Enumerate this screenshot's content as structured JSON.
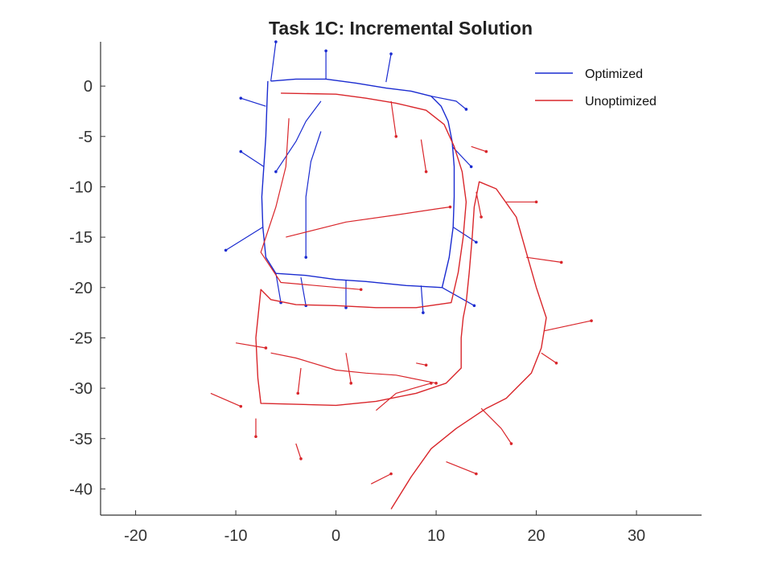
{
  "chart_data": {
    "type": "line",
    "title": "Task 1C: Incremental Solution",
    "xlabel": "",
    "ylabel": "",
    "xlim": [
      -23.5,
      36.5
    ],
    "ylim": [
      -42.6,
      4.4
    ],
    "xticks": [
      -20,
      -10,
      0,
      10,
      20,
      30
    ],
    "yticks": [
      0,
      -5,
      -10,
      -15,
      -20,
      -25,
      -30,
      -35,
      -40
    ],
    "grid": false,
    "legend_position": "top-right",
    "series": [
      {
        "name": "Optimized",
        "color": "#1a2bd0",
        "points": [
          [
            -6.5,
            0.5
          ],
          [
            -4,
            0.7
          ],
          [
            -1,
            0.7
          ],
          [
            2,
            0.3
          ],
          [
            5,
            -0.2
          ],
          [
            7.5,
            -0.5
          ],
          [
            9.5,
            -1
          ],
          [
            10.5,
            -2
          ],
          [
            11.2,
            -3.5
          ],
          [
            11.6,
            -5.5
          ],
          [
            11.8,
            -8
          ],
          [
            11.8,
            -11
          ],
          [
            11.7,
            -14
          ],
          [
            11.3,
            -17
          ],
          [
            10.6,
            -20
          ],
          [
            7,
            -19.8
          ],
          [
            3,
            -19.4
          ],
          [
            0,
            -19.2
          ],
          [
            -3,
            -18.8
          ],
          [
            -6,
            -18.6
          ],
          [
            -7,
            -17
          ],
          [
            -7.3,
            -14
          ],
          [
            -7.4,
            -11
          ],
          [
            -7.2,
            -8
          ],
          [
            -7,
            -5
          ],
          [
            -6.9,
            -2
          ],
          [
            -6.8,
            0.5
          ]
        ],
        "spurs": [
          [
            [
              -6.5,
              0.5
            ],
            [
              -6,
              4.4
            ]
          ],
          [
            [
              -1,
              0.7
            ],
            [
              -1,
              3.5
            ]
          ],
          [
            [
              5,
              0.4
            ],
            [
              5.5,
              3.2
            ]
          ],
          [
            [
              9.5,
              -1
            ],
            [
              12,
              -1.5
            ],
            [
              13,
              -2.3
            ]
          ],
          [
            [
              11.6,
              -6
            ],
            [
              13.5,
              -8
            ]
          ],
          [
            [
              11.7,
              -14
            ],
            [
              14,
              -15.5
            ]
          ],
          [
            [
              10.6,
              -20
            ],
            [
              13.8,
              -21.8
            ]
          ],
          [
            [
              -6,
              -18.6
            ],
            [
              -5.5,
              -21.5
            ]
          ],
          [
            [
              -3.5,
              -19
            ],
            [
              -3,
              -21.8
            ]
          ],
          [
            [
              1,
              -19.3
            ],
            [
              1,
              -22
            ]
          ],
          [
            [
              8.5,
              -19.8
            ],
            [
              8.7,
              -22.5
            ]
          ],
          [
            [
              -7.3,
              -14
            ],
            [
              -11,
              -16.3
            ]
          ],
          [
            [
              -7.2,
              -8
            ],
            [
              -9.5,
              -6.5
            ]
          ],
          [
            [
              -7,
              -2
            ],
            [
              -9.5,
              -1.2
            ]
          ],
          [
            [
              -1.5,
              -1.5
            ],
            [
              -3,
              -3.5
            ],
            [
              -4,
              -5.5
            ],
            [
              -6,
              -8.5
            ]
          ],
          [
            [
              -1.5,
              -4.5
            ],
            [
              -2.5,
              -7.5
            ],
            [
              -3,
              -11
            ],
            [
              -3,
              -14.5
            ],
            [
              -3,
              -17
            ]
          ]
        ]
      },
      {
        "name": "Unoptimized",
        "color": "#d9262b",
        "points": [
          [
            -5.5,
            -0.7
          ],
          [
            0,
            -0.8
          ],
          [
            3,
            -1.2
          ],
          [
            6,
            -1.7
          ],
          [
            9,
            -2.4
          ],
          [
            10.8,
            -3.8
          ],
          [
            11.8,
            -6
          ],
          [
            12.6,
            -8.5
          ],
          [
            13,
            -11.5
          ],
          [
            12.7,
            -15
          ],
          [
            12.2,
            -18.5
          ],
          [
            11.5,
            -21.5
          ],
          [
            8,
            -22
          ],
          [
            4,
            -22
          ],
          [
            0,
            -21.8
          ],
          [
            -4,
            -21.7
          ],
          [
            -6.5,
            -21.2
          ],
          [
            -7.5,
            -20.2
          ],
          [
            -8,
            -25
          ],
          [
            -7.8,
            -29
          ],
          [
            -7.5,
            -31.5
          ],
          [
            -4,
            -31.6
          ],
          [
            0,
            -31.7
          ],
          [
            4,
            -31.3
          ],
          [
            8,
            -30.5
          ],
          [
            11,
            -29.5
          ],
          [
            12.5,
            -28
          ],
          [
            12.5,
            -25
          ],
          [
            12.7,
            -23
          ],
          [
            13,
            -21.5
          ],
          [
            13.3,
            -18.5
          ],
          [
            13.6,
            -15
          ],
          [
            13.8,
            -12
          ],
          [
            14.3,
            -9.5
          ],
          [
            16,
            -10.2
          ],
          [
            18,
            -13
          ],
          [
            19,
            -16.5
          ],
          [
            20,
            -20
          ],
          [
            21,
            -23
          ],
          [
            20.5,
            -26
          ],
          [
            19.5,
            -28.5
          ],
          [
            17,
            -31
          ],
          [
            15,
            -32
          ],
          [
            12,
            -34
          ],
          [
            9.5,
            -36
          ],
          [
            7.5,
            -38.8
          ],
          [
            5.5,
            -42
          ]
        ],
        "spurs": [
          [
            [
              -4.7,
              -3.2
            ],
            [
              -5,
              -8
            ],
            [
              -6,
              -12
            ],
            [
              -7.5,
              -16.5
            ],
            [
              -5.5,
              -19.5
            ],
            [
              2.5,
              -20.2
            ]
          ],
          [
            [
              -5,
              -15
            ],
            [
              1,
              -13.5
            ],
            [
              6,
              -12.8
            ],
            [
              10,
              -12.2
            ],
            [
              11.4,
              -12
            ]
          ],
          [
            [
              5.5,
              -1.5
            ],
            [
              6,
              -5
            ]
          ],
          [
            [
              8.5,
              -5.3
            ],
            [
              9,
              -8.5
            ]
          ],
          [
            [
              13.5,
              -6
            ],
            [
              15,
              -6.5
            ]
          ],
          [
            [
              14,
              -10.5
            ],
            [
              14.5,
              -13
            ]
          ],
          [
            [
              17,
              -11.5
            ],
            [
              20,
              -11.5
            ]
          ],
          [
            [
              19,
              -17
            ],
            [
              22.5,
              -17.5
            ]
          ],
          [
            [
              20.8,
              -24.3
            ],
            [
              25.5,
              -23.3
            ]
          ],
          [
            [
              20.5,
              -26.5
            ],
            [
              22,
              -27.5
            ]
          ],
          [
            [
              -10,
              -25.5
            ],
            [
              -7,
              -26
            ]
          ],
          [
            [
              -12.5,
              -30.5
            ],
            [
              -9.5,
              -31.8
            ]
          ],
          [
            [
              -8,
              -33
            ],
            [
              -8,
              -34.8
            ]
          ],
          [
            [
              -4,
              -35.5
            ],
            [
              -3.5,
              -37
            ]
          ],
          [
            [
              3.5,
              -39.5
            ],
            [
              5.5,
              -38.5
            ]
          ],
          [
            [
              14.5,
              -32
            ],
            [
              16.5,
              -34
            ],
            [
              17.5,
              -35.5
            ]
          ],
          [
            [
              11,
              -37.3
            ],
            [
              14,
              -38.5
            ]
          ],
          [
            [
              8,
              -27.5
            ],
            [
              9,
              -27.7
            ]
          ],
          [
            [
              -6.5,
              -26.5
            ],
            [
              -4,
              -27
            ],
            [
              0,
              -28.2
            ],
            [
              3,
              -28.5
            ],
            [
              6,
              -28.7
            ],
            [
              10,
              -29.5
            ]
          ],
          [
            [
              -3.5,
              -28
            ],
            [
              -3.8,
              -30.5
            ]
          ],
          [
            [
              1,
              -26.5
            ],
            [
              1.5,
              -29.5
            ]
          ],
          [
            [
              4,
              -32.2
            ],
            [
              6,
              -30.5
            ],
            [
              9.5,
              -29.5
            ]
          ]
        ]
      }
    ]
  }
}
